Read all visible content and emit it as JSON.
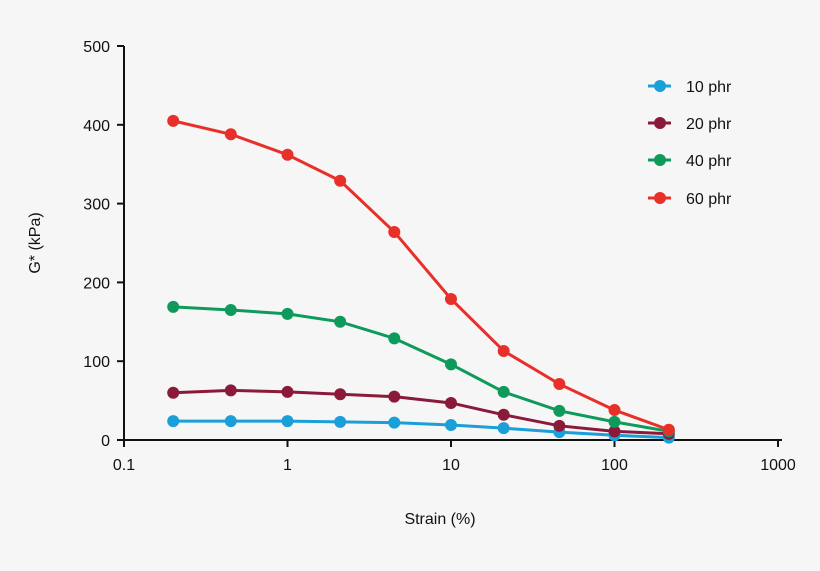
{
  "chart_data": {
    "type": "line",
    "title": "",
    "xlabel": "Strain (%)",
    "ylabel": "G* (kPa)",
    "xscale": "log",
    "xlim": [
      0.1,
      1000
    ],
    "ylim": [
      0,
      500
    ],
    "xticks": [
      "0.1",
      "1",
      "10",
      "100",
      "1000"
    ],
    "yticks": [
      "0",
      "100",
      "200",
      "300",
      "400",
      "500"
    ],
    "grid": false,
    "legend_position": "top-right",
    "x": [
      0.2,
      0.45,
      1,
      2.1,
      4.5,
      10,
      21,
      46,
      100,
      215
    ],
    "series": [
      {
        "name": "10 phr",
        "color": "#1a9fd9",
        "values": [
          24,
          24,
          24,
          23,
          22,
          19,
          15,
          10,
          6,
          3
        ]
      },
      {
        "name": "20 phr",
        "color": "#8b1a3a",
        "values": [
          60,
          63,
          61,
          58,
          55,
          47,
          32,
          18,
          11,
          8
        ]
      },
      {
        "name": "40 phr",
        "color": "#0e9a5a",
        "values": [
          169,
          165,
          160,
          150,
          129,
          96,
          61,
          37,
          23,
          11
        ]
      },
      {
        "name": "60 phr",
        "color": "#e8302a",
        "values": [
          405,
          388,
          362,
          329,
          264,
          179,
          113,
          71,
          38,
          13
        ]
      }
    ]
  }
}
